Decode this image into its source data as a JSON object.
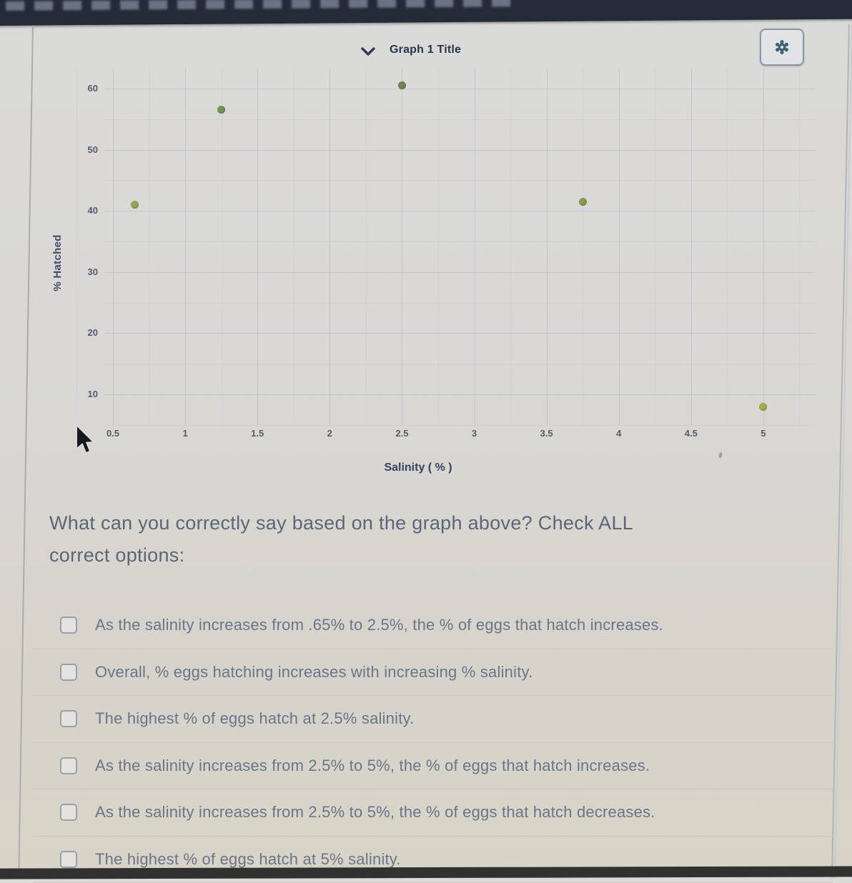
{
  "graph_header": {
    "title": "Graph 1 Title",
    "settings_icon": "gear-icon",
    "collapse_icon": "chevron-down-icon"
  },
  "chart_data": {
    "type": "scatter",
    "title": "Graph 1 Title",
    "xlabel": "Salinity ( % )",
    "ylabel": "% Hatched",
    "x_ticks": [
      "0.5",
      "1",
      "1.5",
      "2",
      "2.5",
      "3",
      "3.5",
      "4",
      "4.5",
      "5"
    ],
    "y_ticks": [
      "10",
      "20",
      "30",
      "40",
      "50",
      "60"
    ],
    "xlim": [
      0.25,
      5.3
    ],
    "ylim": [
      5,
      63
    ],
    "grid": true,
    "legend": false,
    "points": [
      {
        "x": 0.65,
        "y": 41,
        "color": "#9aa54f"
      },
      {
        "x": 1.25,
        "y": 56.5,
        "color": "#6f9757"
      },
      {
        "x": 2.5,
        "y": 60.5,
        "color": "#6d8550"
      },
      {
        "x": 3.75,
        "y": 41.5,
        "color": "#8c9a4e"
      },
      {
        "x": 5,
        "y": 8,
        "color": "#a6ad49"
      }
    ]
  },
  "question": {
    "text": "What can you correctly say based on the graph above? Check ALL\ncorrect options:"
  },
  "options": [
    {
      "label": "As the salinity increases from .65% to 2.5%, the % of eggs that hatch increases.",
      "checked": false
    },
    {
      "label": "Overall, % eggs hatching increases with increasing % salinity.",
      "checked": false
    },
    {
      "label": "The highest % of eggs hatch at 2.5% salinity.",
      "checked": false
    },
    {
      "label": "As the salinity increases from 2.5% to 5%, the % of eggs that hatch increases.",
      "checked": false
    },
    {
      "label": "As the salinity increases from 2.5% to 5%, the % of eggs that hatch decreases.",
      "checked": false
    },
    {
      "label": "The highest % of eggs hatch at 5% salinity.",
      "checked": false
    }
  ],
  "colors": {
    "top_bar": "#242a38",
    "panel_bg": "#d9d8d6",
    "grid": "#c2c5c9",
    "title_text": "#26354a",
    "axis_text": "#545c6b",
    "question_text": "#5d6678",
    "option_text": "#6b7489",
    "gear_icon": "#3c6472",
    "point_default": "#8c9a4e"
  }
}
